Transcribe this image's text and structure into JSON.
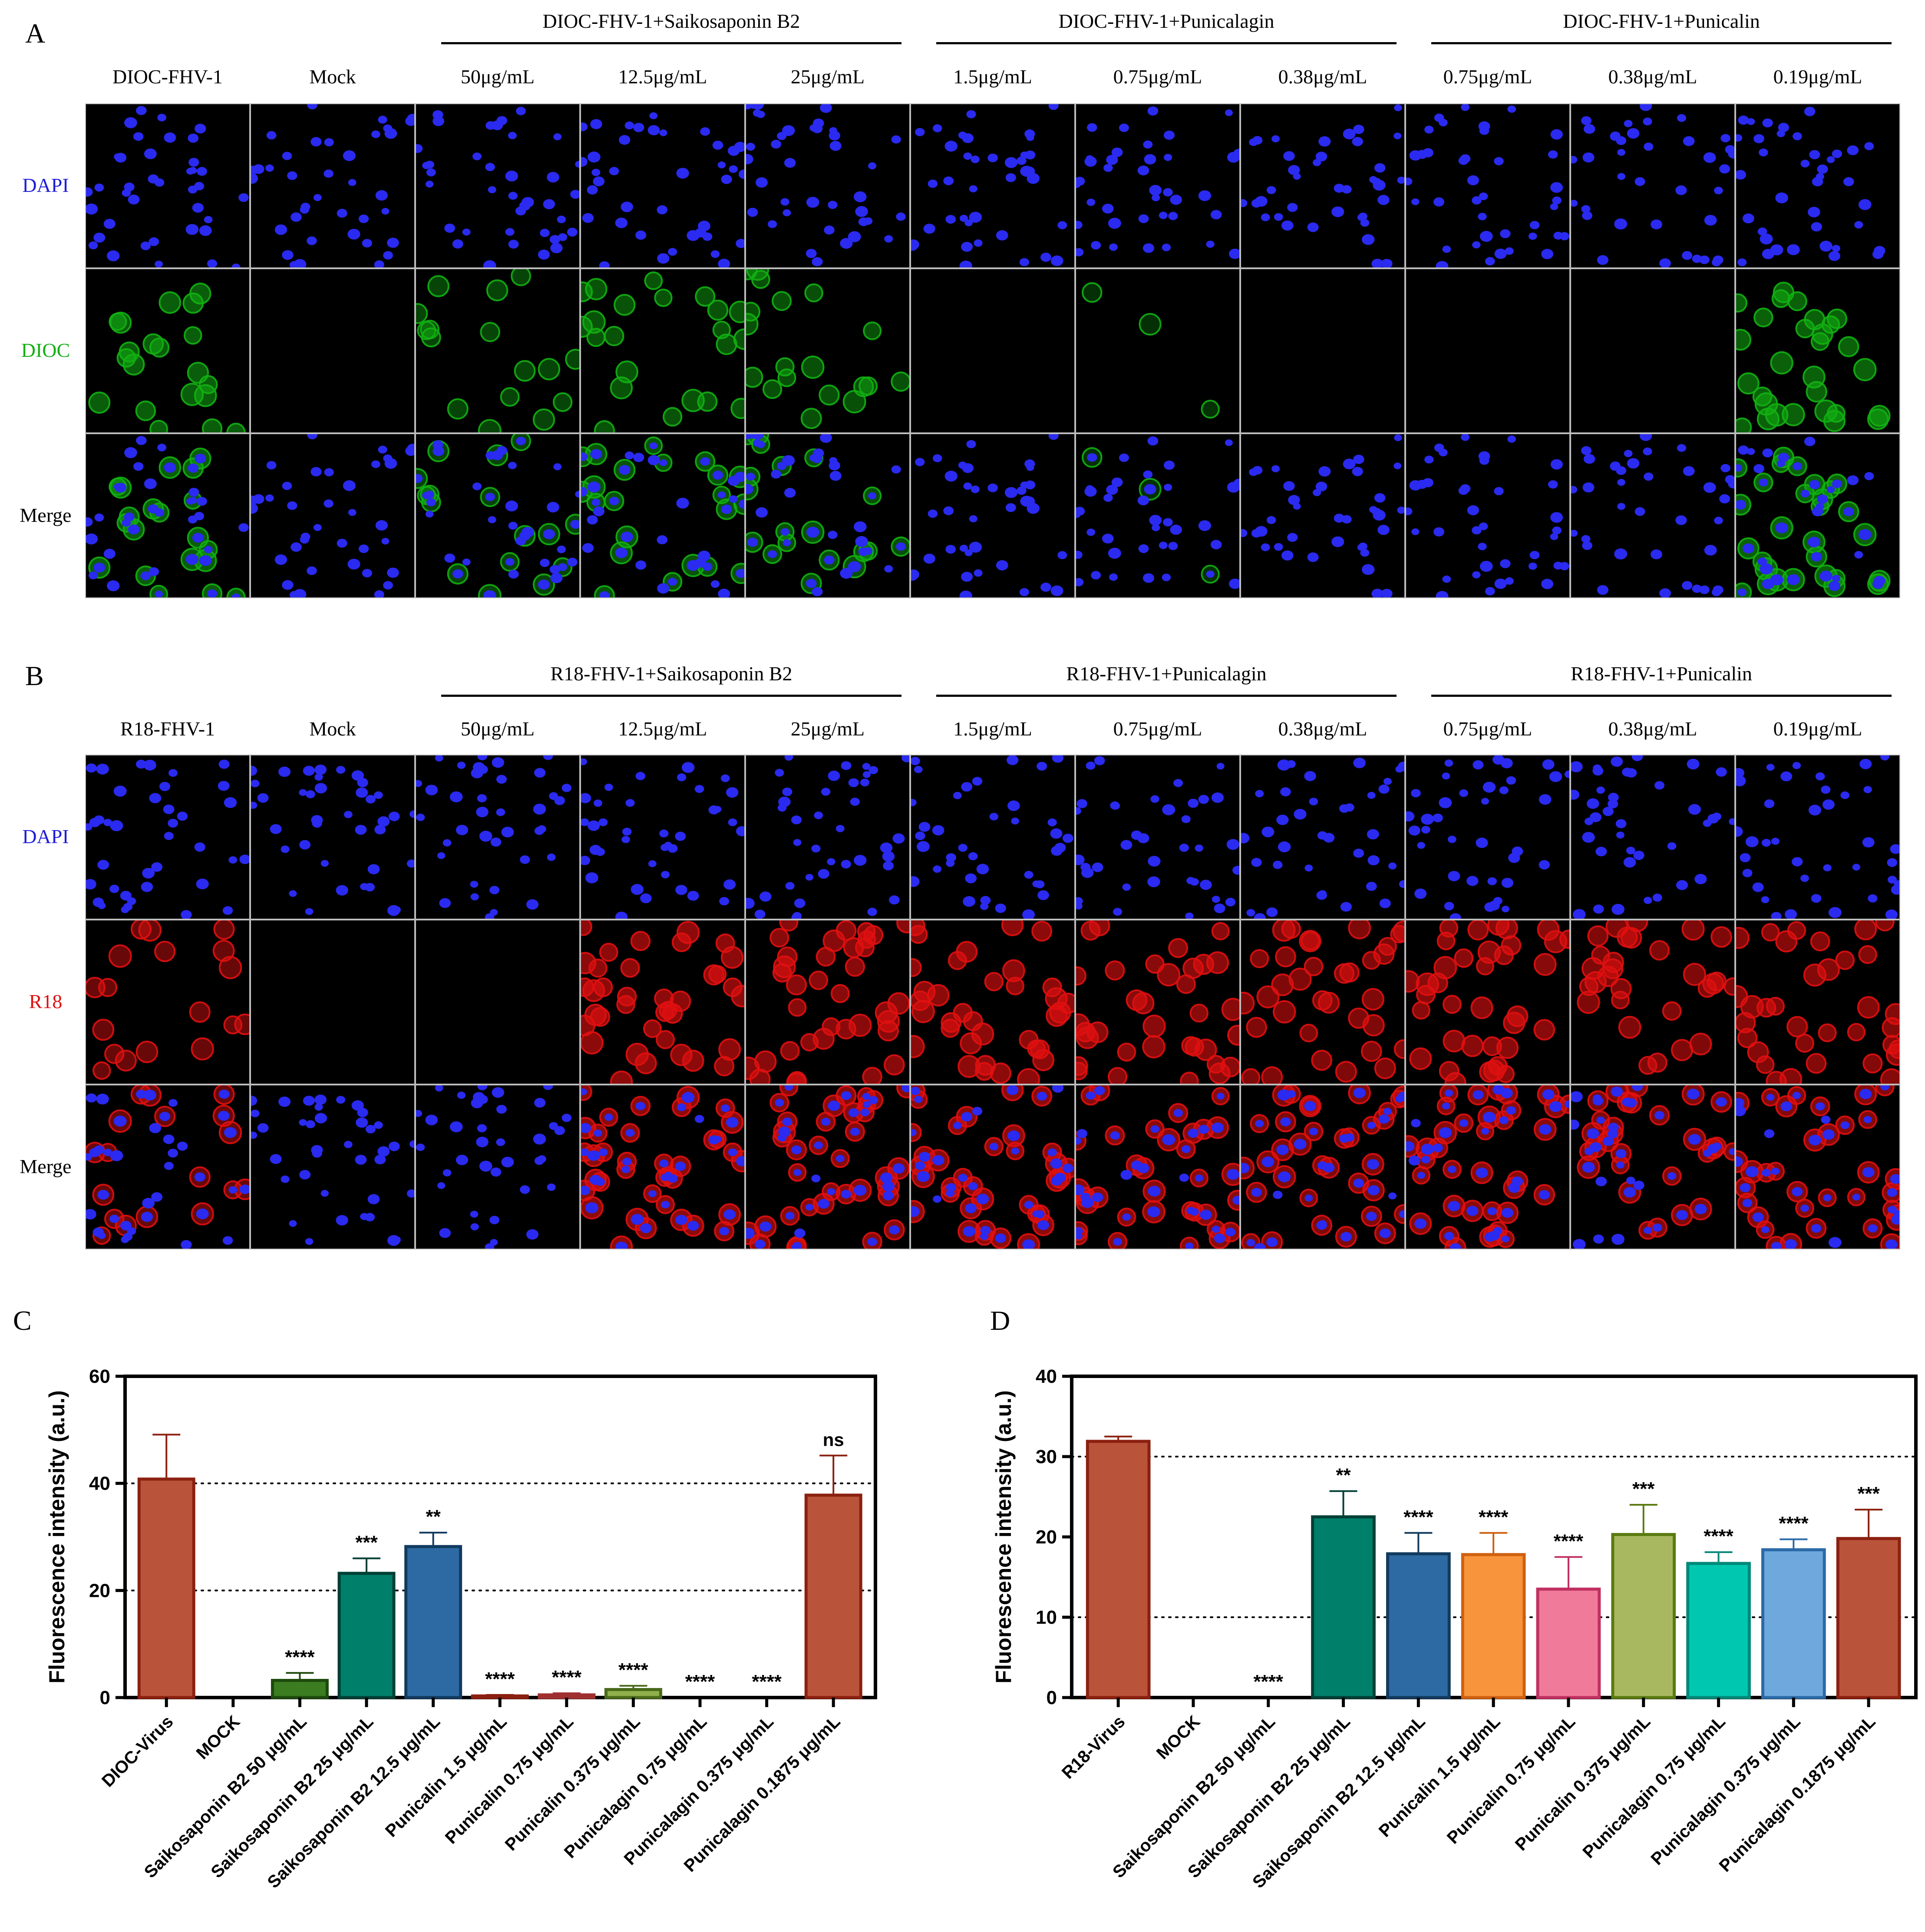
{
  "panelA": {
    "letter": "A",
    "groups": [
      "DIOC-FHV-1+Saikosaponin B2",
      "DIOC-FHV-1+Punicalagin",
      "DIOC-FHV-1+Punicalin"
    ],
    "columns": [
      "DIOC-FHV-1",
      "Mock",
      "50μg/mL",
      "12.5μg/mL",
      "25μg/mL",
      "1.5μg/mL",
      "0.75μg/mL",
      "0.38μg/mL",
      "0.75μg/mL",
      "0.38μg/mL",
      "0.19μg/mL"
    ],
    "rows": [
      "DAPI",
      "DIOC",
      "Merge"
    ],
    "stain_colors": {
      "DAPI": "#1e1ed8",
      "DIOC": "#12b012",
      "Merge": "#000000"
    },
    "signal_level": [
      0.7,
      0.0,
      0.35,
      0.55,
      0.5,
      0.0,
      0.05,
      0.0,
      0.0,
      0.0,
      0.75
    ]
  },
  "panelB": {
    "letter": "B",
    "groups": [
      "R18-FHV-1+Saikosaponin B2",
      "R18-FHV-1+Punicalagin",
      "R18-FHV-1+Punicalin"
    ],
    "columns": [
      "R18-FHV-1",
      "Mock",
      "50μg/mL",
      "12.5μg/mL",
      "25μg/mL",
      "1.5μg/mL",
      "0.75μg/mL",
      "0.38μg/mL",
      "0.75μg/mL",
      "0.38μg/mL",
      "0.19μg/mL"
    ],
    "rows": [
      "DAPI",
      "R18",
      "Merge"
    ],
    "stain_colors": {
      "DAPI": "#1e1ed8",
      "R18": "#e01010",
      "Merge": "#000000"
    },
    "signal_level": [
      0.55,
      0.0,
      0.0,
      0.95,
      0.9,
      0.95,
      0.9,
      0.8,
      0.9,
      0.8,
      0.85
    ]
  },
  "chart_data": [
    {
      "panel": "C",
      "type": "bar",
      "ylabel": "Fluorescence intensity (a.u.)",
      "ylim": [
        0,
        60
      ],
      "yticks": [
        "0",
        "20",
        "40",
        "60"
      ],
      "ytick_values": [
        0,
        20,
        40,
        60
      ],
      "gridlines": [
        20,
        40
      ],
      "categories": [
        "DIOC-Virus",
        "MOCK",
        "Saikosaponin B2 50 μg/mL",
        "Saikosaponin B2 25 μg/mL",
        "Saikosaponin B2 12.5 μg/mL",
        "Punicalin 1.5 μg/mL",
        "Punicalin 0.75 μg/mL",
        "Punicalin 0.375 μg/mL",
        "Punicalagin 0.75 μg/mL",
        "Punicalagin 0.375 μg/mL",
        "Punicalagin 0.1875 μg/mL"
      ],
      "values": [
        40.8,
        0,
        3.2,
        23.2,
        28.2,
        0.3,
        0.5,
        1.5,
        0,
        0,
        37.8
      ],
      "errors": [
        8.3,
        0,
        1.4,
        2.8,
        2.6,
        0.2,
        0.3,
        0.7,
        0,
        0,
        7.4
      ],
      "significance": [
        "",
        "",
        "****",
        "***",
        "**",
        "****",
        "****",
        "****",
        "****",
        "****",
        "ns"
      ],
      "fill_colors": [
        "#b9533a",
        "#ffffff",
        "#3b7d20",
        "#007f6a",
        "#2d6aa3",
        "#c0523a",
        "#e07070",
        "#8fb04a",
        "#ffffff",
        "#ffffff",
        "#b9533a"
      ],
      "edge_colors": [
        "#8b2010",
        "#000000",
        "#1e4a0d",
        "#003f35",
        "#123a5e",
        "#8b2010",
        "#a03030",
        "#4a6a1a",
        "#000000",
        "#000000",
        "#8b2010"
      ]
    },
    {
      "panel": "D",
      "type": "bar",
      "ylabel": "Fluorescence intensity (a.u.)",
      "ylim": [
        0,
        40
      ],
      "yticks": [
        "0",
        "10",
        "20",
        "30",
        "40"
      ],
      "ytick_values": [
        0,
        10,
        20,
        30,
        40
      ],
      "gridlines": [
        10,
        30
      ],
      "categories": [
        "R18-Virus",
        "MOCK",
        "Saikosaponin B2 50 μg/mL",
        "Saikosaponin B2 25 μg/mL",
        "Saikosaponin B2 12.5 μg/mL",
        "Punicalin 1.5 μg/mL",
        "Punicalin 0.75 μg/mL",
        "Punicalin 0.375 μg/mL",
        "Punicalagin 0.75 μg/mL",
        "Punicalagin 0.375 μg/mL",
        "Punicalagin 0.1875 μg/mL"
      ],
      "values": [
        31.9,
        0,
        0,
        22.5,
        17.9,
        17.8,
        13.5,
        20.3,
        16.7,
        18.4,
        19.8
      ],
      "errors": [
        0.6,
        0,
        0,
        3.2,
        2.6,
        2.7,
        4.0,
        3.7,
        1.4,
        1.3,
        3.6
      ],
      "significance": [
        "",
        "",
        "****",
        "**",
        "****",
        "****",
        "****",
        "***",
        "****",
        "****",
        "***"
      ],
      "fill_colors": [
        "#b9533a",
        "#ffffff",
        "#ffffff",
        "#007f6a",
        "#2d6aa3",
        "#f7943c",
        "#f07a9a",
        "#a8b860",
        "#00c8b0",
        "#6fa8dc",
        "#b9533a"
      ],
      "edge_colors": [
        "#8b2010",
        "#000000",
        "#000000",
        "#003f35",
        "#123a5e",
        "#d06010",
        "#c03060",
        "#5a7a10",
        "#008878",
        "#2a6aa8",
        "#8b2010"
      ]
    }
  ],
  "chart_letters": [
    "C",
    "D"
  ]
}
